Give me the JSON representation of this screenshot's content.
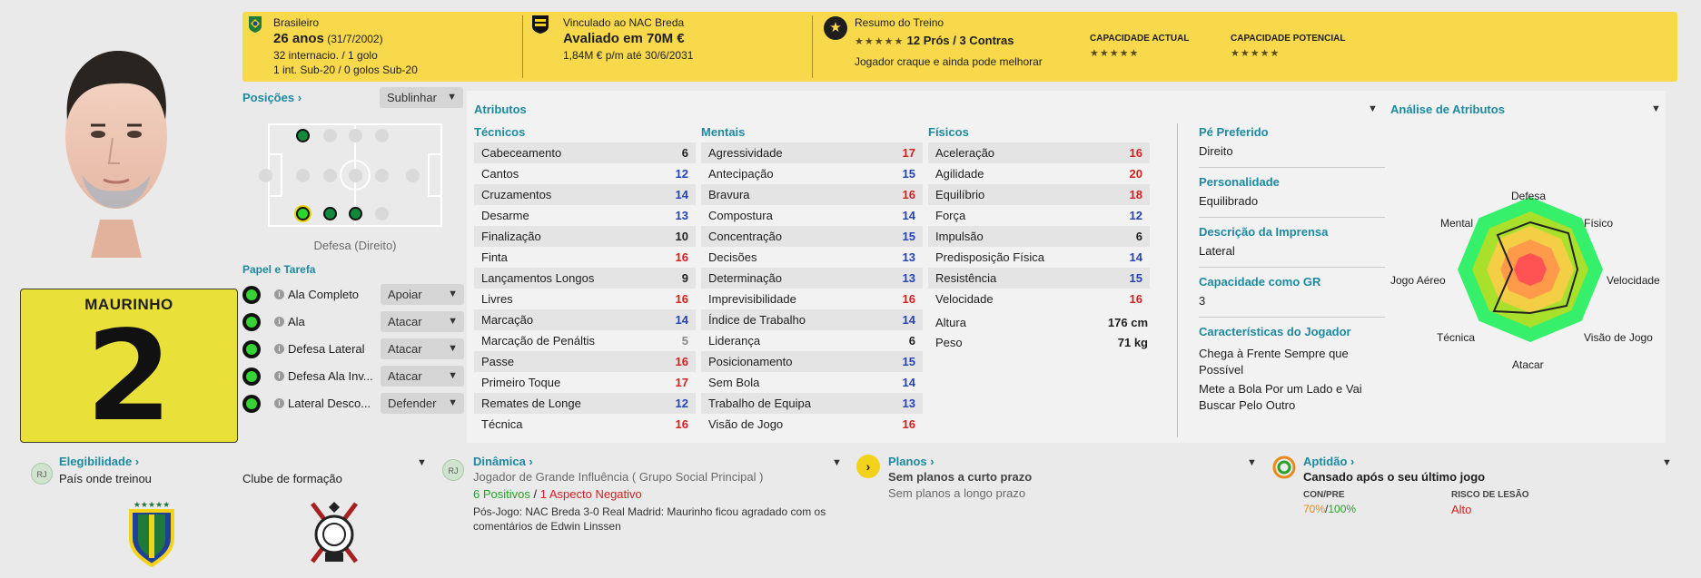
{
  "topbar": {
    "nationality": "Brasileiro",
    "age": "26 anos",
    "dob": "(31/7/2002)",
    "caps": "32 internacio. / 1 golo",
    "youth_caps": "1 int. Sub-20 / 0 golos Sub-20",
    "club_line": "Vinculado ao NAC Breda",
    "value": "Avaliado em 70M €",
    "contract": "1,84M € p/m até 30/6/2031",
    "training_title": "Resumo do Treino",
    "training_stars": "★★★★★",
    "pros_cons": "12 Prós / 3 Contras",
    "training_desc": "Jogador craque e ainda pode melhorar",
    "current_ability_label": "CAPACIDADE ACTUAL",
    "current_ability_stars": "★★★★★",
    "potential_ability_label": "CAPACIDADE POTENCIAL",
    "potential_ability_stars": "★★★★★"
  },
  "kit": {
    "name": "MAURINHO",
    "number": "2"
  },
  "positions": {
    "title": "Posições",
    "highlight_button": "Sublinhar",
    "caption": "Defesa (Direito)"
  },
  "roles": {
    "title": "Papel e Tarefa",
    "items": [
      {
        "name": "Ala Completo",
        "duty": "Apoiar"
      },
      {
        "name": "Ala",
        "duty": "Atacar"
      },
      {
        "name": "Defesa Lateral",
        "duty": "Atacar"
      },
      {
        "name": "Defesa Ala Inv...",
        "duty": "Atacar"
      },
      {
        "name": "Lateral Desco...",
        "duty": "Defender"
      }
    ]
  },
  "attributes": {
    "title": "Atributos",
    "technical_title": "Técnicos",
    "mental_title": "Mentais",
    "physical_title": "Físicos",
    "technical": [
      {
        "name": "Cabeceamento",
        "value": "6",
        "color": "blk"
      },
      {
        "name": "Cantos",
        "value": "12",
        "color": "blue"
      },
      {
        "name": "Cruzamentos",
        "value": "14",
        "color": "blue"
      },
      {
        "name": "Desarme",
        "value": "13",
        "color": "blue"
      },
      {
        "name": "Finalização",
        "value": "10",
        "color": "blk"
      },
      {
        "name": "Finta",
        "value": "16",
        "color": "red"
      },
      {
        "name": "Lançamentos Longos",
        "value": "9",
        "color": "blk"
      },
      {
        "name": "Livres",
        "value": "16",
        "color": "red"
      },
      {
        "name": "Marcação",
        "value": "14",
        "color": "blue"
      },
      {
        "name": "Marcação de Penáltis",
        "value": "5",
        "color": "gray"
      },
      {
        "name": "Passe",
        "value": "16",
        "color": "red"
      },
      {
        "name": "Primeiro Toque",
        "value": "17",
        "color": "red"
      },
      {
        "name": "Remates de Longe",
        "value": "12",
        "color": "blue"
      },
      {
        "name": "Técnica",
        "value": "16",
        "color": "red"
      }
    ],
    "mental": [
      {
        "name": "Agressividade",
        "value": "17",
        "color": "red"
      },
      {
        "name": "Antecipação",
        "value": "15",
        "color": "blue"
      },
      {
        "name": "Bravura",
        "value": "16",
        "color": "red"
      },
      {
        "name": "Compostura",
        "value": "14",
        "color": "blue"
      },
      {
        "name": "Concentração",
        "value": "15",
        "color": "blue"
      },
      {
        "name": "Decisões",
        "value": "13",
        "color": "blue"
      },
      {
        "name": "Determinação",
        "value": "13",
        "color": "blue"
      },
      {
        "name": "Imprevisibilidade",
        "value": "16",
        "color": "red"
      },
      {
        "name": "Índice de Trabalho",
        "value": "14",
        "color": "blue"
      },
      {
        "name": "Liderança",
        "value": "6",
        "color": "blk"
      },
      {
        "name": "Posicionamento",
        "value": "15",
        "color": "blue"
      },
      {
        "name": "Sem Bola",
        "value": "14",
        "color": "blue"
      },
      {
        "name": "Trabalho de Equipa",
        "value": "13",
        "color": "blue"
      },
      {
        "name": "Visão de Jogo",
        "value": "16",
        "color": "red"
      }
    ],
    "physical": [
      {
        "name": "Aceleração",
        "value": "16",
        "color": "red"
      },
      {
        "name": "Agilidade",
        "value": "20",
        "color": "red"
      },
      {
        "name": "Equilíbrio",
        "value": "18",
        "color": "red"
      },
      {
        "name": "Força",
        "value": "12",
        "color": "blue"
      },
      {
        "name": "Impulsão",
        "value": "6",
        "color": "blk"
      },
      {
        "name": "Predisposição Física",
        "value": "14",
        "color": "blue"
      },
      {
        "name": "Resistência",
        "value": "15",
        "color": "blue"
      },
      {
        "name": "Velocidade",
        "value": "16",
        "color": "red"
      }
    ],
    "height_label": "Altura",
    "height_value": "176 cm",
    "weight_label": "Peso",
    "weight_value": "71 kg"
  },
  "details": {
    "foot_label": "Pé Preferido",
    "foot_value": "Direito",
    "personality_label": "Personalidade",
    "personality_value": "Equilibrado",
    "press_label": "Descrição da Imprensa",
    "press_value": "Lateral",
    "gk_label": "Capacidade como GR",
    "gk_value": "3",
    "traits_label": "Características do Jogador",
    "trait1": "Chega à Frente Sempre que Possível",
    "trait2": "Mete a Bola Por um Lado e Vai Buscar Pelo Outro"
  },
  "analysis": {
    "title": "Análise de Atributos",
    "labels": {
      "defesa": "Defesa",
      "fisico": "Físico",
      "velocidade": "Velocidade",
      "visao": "Visão de Jogo",
      "atacar": "Atacar",
      "tecnica": "Técnica",
      "aereo": "Jogo Aéreo",
      "mental": "Mental"
    }
  },
  "bottom": {
    "eligibility_title": "Elegibilidade",
    "eligibility_sub": "País onde treinou",
    "formation_club": "Clube de formação",
    "rj": "RJ",
    "dynamics_title": "Dinâmica",
    "dynamics_influence": "Jogador de Grande Influência",
    "dynamics_group": "( Grupo Social Principal )",
    "positives": "6 Positivos",
    "separator": "/",
    "negatives": "1 Aspecto Negativo",
    "post_match": "Pós-Jogo: NAC Breda 3-0 Real Madrid: Maurinho ficou agradado com os comentários de Edwin Linssen",
    "plans_title": "Planos",
    "plans_short": "Sem planos a curto prazo",
    "plans_long": "Sem planos a longo prazo",
    "fitness_title": "Aptidão",
    "fitness_status": "Cansado após o seu último jogo",
    "conpre_label": "CON/PRE",
    "con_value": "70%",
    "pre_value": "100%",
    "injury_label": "RISCO DE LESÃO",
    "injury_value": "Alto"
  }
}
